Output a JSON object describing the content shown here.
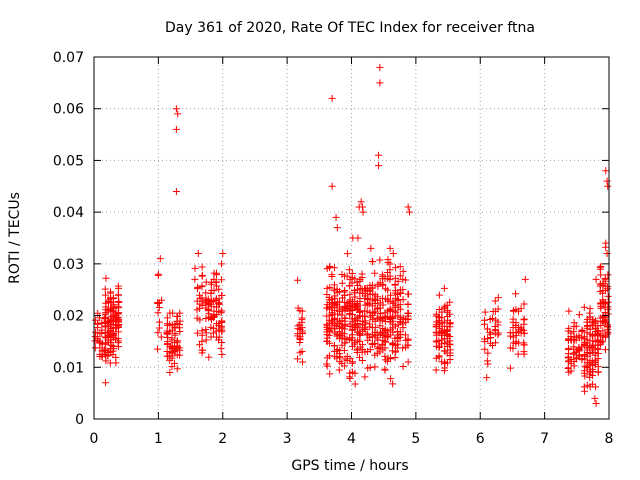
{
  "chart_data": {
    "type": "scatter",
    "title": "Day 361 of 2020, Rate Of TEC Index for receiver ftna",
    "xlabel": "GPS time / hours",
    "ylabel": "ROTI / TECUs",
    "xlim": [
      0,
      8
    ],
    "ylim": [
      0,
      0.07
    ],
    "xticks": [
      0,
      1,
      2,
      3,
      4,
      5,
      6,
      7,
      8
    ],
    "xtick_labels": [
      "0",
      "1",
      "2",
      "3",
      "4",
      "5",
      "6",
      "7",
      "8"
    ],
    "yticks": [
      0,
      0.01,
      0.02,
      0.03,
      0.04,
      0.05,
      0.06,
      0.07
    ],
    "ytick_labels": [
      "0",
      "0.01",
      "0.02",
      "0.03",
      "0.04",
      "0.05",
      "0.06",
      "0.07"
    ],
    "grid": true,
    "marker": "+",
    "color": "#ff0000",
    "clusters": [
      {
        "x_range": [
          0.0,
          0.18
        ],
        "y_range": [
          0.01,
          0.023
        ],
        "n": 30
      },
      {
        "x_range": [
          0.16,
          0.4
        ],
        "y_range": [
          0.007,
          0.029
        ],
        "n": 150
      },
      {
        "x_range": [
          0.98,
          1.06
        ],
        "y_range": [
          0.009,
          0.031
        ],
        "n": 12
      },
      {
        "x_range": [
          1.12,
          1.35
        ],
        "y_range": [
          0.005,
          0.025
        ],
        "n": 70
      },
      {
        "x_range": [
          1.55,
          1.7
        ],
        "y_range": [
          0.01,
          0.032
        ],
        "n": 28
      },
      {
        "x_range": [
          1.72,
          2.0
        ],
        "y_range": [
          0.009,
          0.032
        ],
        "n": 90
      },
      {
        "x_range": [
          3.15,
          3.25
        ],
        "y_range": [
          0.006,
          0.029
        ],
        "n": 25
      },
      {
        "x_range": [
          3.6,
          4.7
        ],
        "y_range": [
          0.004,
          0.035
        ],
        "n": 480
      },
      {
        "x_range": [
          4.7,
          4.9
        ],
        "y_range": [
          0.006,
          0.033
        ],
        "n": 60
      },
      {
        "x_range": [
          5.3,
          5.55
        ],
        "y_range": [
          0.007,
          0.026
        ],
        "n": 90
      },
      {
        "x_range": [
          6.05,
          6.3
        ],
        "y_range": [
          0.008,
          0.025
        ],
        "n": 35
      },
      {
        "x_range": [
          6.45,
          6.7
        ],
        "y_range": [
          0.007,
          0.027
        ],
        "n": 45
      },
      {
        "x_range": [
          7.35,
          7.6
        ],
        "y_range": [
          0.007,
          0.022
        ],
        "n": 60
      },
      {
        "x_range": [
          7.6,
          7.85
        ],
        "y_range": [
          0.003,
          0.025
        ],
        "n": 110
      },
      {
        "x_range": [
          7.85,
          8.0
        ],
        "y_range": [
          0.006,
          0.034
        ],
        "n": 70
      }
    ],
    "points": [
      [
        1.28,
        0.06
      ],
      [
        1.3,
        0.059
      ],
      [
        1.28,
        0.056
      ],
      [
        1.28,
        0.044
      ],
      [
        3.7,
        0.062
      ],
      [
        4.44,
        0.068
      ],
      [
        4.44,
        0.065
      ],
      [
        4.42,
        0.051
      ],
      [
        4.42,
        0.049
      ],
      [
        3.7,
        0.045
      ],
      [
        4.15,
        0.042
      ],
      [
        4.17,
        0.041
      ],
      [
        4.18,
        0.04
      ],
      [
        4.12,
        0.041
      ],
      [
        4.88,
        0.041
      ],
      [
        4.9,
        0.04
      ],
      [
        3.76,
        0.039
      ],
      [
        3.78,
        0.037
      ],
      [
        4.02,
        0.035
      ],
      [
        4.1,
        0.035
      ],
      [
        4.3,
        0.033
      ],
      [
        4.6,
        0.033
      ],
      [
        4.65,
        0.032
      ],
      [
        7.95,
        0.048
      ],
      [
        7.97,
        0.046
      ],
      [
        7.98,
        0.045
      ],
      [
        7.95,
        0.034
      ],
      [
        7.97,
        0.032
      ],
      [
        7.8,
        0.027
      ],
      [
        6.7,
        0.027
      ],
      [
        2.0,
        0.032
      ],
      [
        1.62,
        0.032
      ],
      [
        1.98,
        0.03
      ],
      [
        1.03,
        0.031
      ],
      [
        1.0,
        0.028
      ],
      [
        7.8,
        0.003
      ],
      [
        7.78,
        0.004
      ],
      [
        6.1,
        0.008
      ],
      [
        0.18,
        0.007
      ]
    ]
  }
}
